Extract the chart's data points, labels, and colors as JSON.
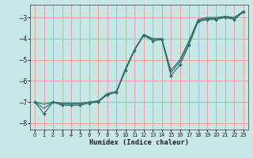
{
  "title": "",
  "xlabel": "Humidex (Indice chaleur)",
  "background_color": "#c8e8e8",
  "grid_color": "#e8a0a0",
  "line_color": "#2d7068",
  "xlim": [
    -0.5,
    23.5
  ],
  "ylim": [
    -8.3,
    -2.4
  ],
  "yticks": [
    -8,
    -7,
    -6,
    -5,
    -4,
    -3
  ],
  "xticks": [
    0,
    1,
    2,
    3,
    4,
    5,
    6,
    7,
    8,
    9,
    10,
    11,
    12,
    13,
    14,
    15,
    16,
    17,
    18,
    19,
    20,
    21,
    22,
    23
  ],
  "line1_x": [
    0,
    1,
    2,
    3,
    4,
    5,
    6,
    7,
    8,
    9,
    10,
    11,
    12,
    13,
    14,
    15,
    16,
    17,
    18,
    19,
    20,
    21,
    22,
    23
  ],
  "line1_y": [
    -7.0,
    -7.55,
    -7.0,
    -7.15,
    -7.15,
    -7.15,
    -7.05,
    -7.0,
    -6.65,
    -6.55,
    -5.5,
    -4.55,
    -3.85,
    -4.1,
    -4.05,
    -5.75,
    -5.25,
    -4.3,
    -3.2,
    -3.1,
    -3.1,
    -3.0,
    -3.1,
    -2.75
  ],
  "line2_x": [
    0,
    1,
    2,
    3,
    4,
    5,
    6,
    7,
    8,
    9,
    10,
    11,
    12,
    13,
    14,
    15,
    16,
    17,
    18,
    19,
    20,
    21,
    22,
    23
  ],
  "line2_y": [
    -7.0,
    -7.1,
    -7.0,
    -7.05,
    -7.05,
    -7.05,
    -7.0,
    -6.95,
    -6.6,
    -6.5,
    -5.4,
    -4.5,
    -3.8,
    -4.0,
    -4.0,
    -5.5,
    -5.0,
    -4.1,
    -3.1,
    -3.0,
    -3.0,
    -2.95,
    -3.0,
    -2.7
  ],
  "line3_x": [
    0,
    1,
    2,
    3,
    4,
    5,
    6,
    7,
    8,
    9,
    10,
    11,
    12,
    13,
    14,
    15,
    16,
    17,
    18,
    19,
    20,
    21,
    22,
    23
  ],
  "line3_y": [
    -7.0,
    -7.3,
    -7.0,
    -7.1,
    -7.1,
    -7.1,
    -7.0,
    -6.95,
    -6.6,
    -6.5,
    -5.45,
    -4.52,
    -3.82,
    -4.05,
    -4.02,
    -5.6,
    -5.1,
    -4.2,
    -3.15,
    -3.05,
    -3.05,
    -2.97,
    -3.05,
    -2.72
  ]
}
